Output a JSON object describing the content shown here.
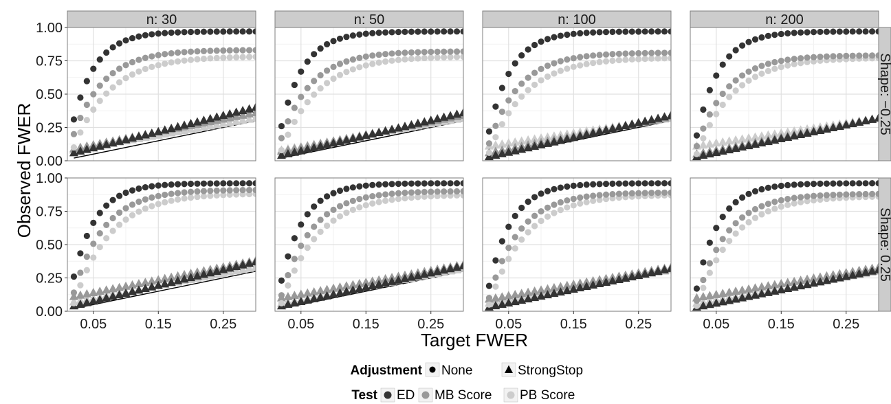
{
  "chart_data": {
    "type": "scatter",
    "xlabel": "Target FWER",
    "ylabel": "Observed FWER",
    "xlim": [
      0.01,
      0.3
    ],
    "ylim": [
      0,
      1
    ],
    "x_ticks": [
      "0.05",
      "0.15",
      "0.25"
    ],
    "x_tick_values": [
      0.05,
      0.15,
      0.25
    ],
    "y_ticks": [
      "0.00",
      "0.25",
      "0.50",
      "0.75",
      "1.00"
    ],
    "y_tick_values": [
      0,
      0.25,
      0.5,
      0.75,
      1
    ],
    "grid": true,
    "reference_line": "y = x",
    "col_facets": [
      "n: 30",
      "n: 50",
      "n: 100",
      "n: 200"
    ],
    "row_facets": [
      "Shape: −0.25",
      "Shape: 0.25"
    ],
    "x_points": [
      0.02,
      0.03,
      0.04,
      0.05,
      0.06,
      0.07,
      0.08,
      0.09,
      0.1,
      0.11,
      0.12,
      0.13,
      0.14,
      0.15,
      0.16,
      0.17,
      0.18,
      0.19,
      0.2,
      0.21,
      0.22,
      0.23,
      0.24,
      0.25,
      0.26,
      0.27,
      0.28,
      0.29,
      0.3
    ],
    "tests": [
      {
        "name": "ED",
        "color": "#333333"
      },
      {
        "name": "MB Score",
        "color": "#999999"
      },
      {
        "name": "PB Score",
        "color": "#cccccc"
      }
    ],
    "adjustments": [
      {
        "name": "None",
        "shape": "circle"
      },
      {
        "name": "StrongStop",
        "shape": "triangle"
      }
    ],
    "panels": [
      {
        "row": 0,
        "col": 0,
        "none_start": [
          0.31,
          0.2,
          0.1
        ],
        "none_end": [
          0.97,
          0.83,
          0.78
        ],
        "none_k": [
          8,
          6,
          5
        ],
        "strong_start": [
          0.06,
          0.09,
          0.08
        ],
        "strong_end": [
          0.4,
          0.36,
          0.32
        ]
      },
      {
        "row": 0,
        "col": 1,
        "none_start": [
          0.26,
          0.17,
          0.08
        ],
        "none_end": [
          0.97,
          0.82,
          0.78
        ],
        "none_k": [
          8,
          6,
          5
        ],
        "strong_start": [
          0.04,
          0.07,
          0.08
        ],
        "strong_end": [
          0.36,
          0.34,
          0.32
        ]
      },
      {
        "row": 0,
        "col": 2,
        "none_start": [
          0.22,
          0.13,
          0.06
        ],
        "none_end": [
          0.97,
          0.81,
          0.77
        ],
        "none_k": [
          8,
          6,
          5
        ],
        "strong_start": [
          0.03,
          0.06,
          0.11
        ],
        "strong_end": [
          0.34,
          0.33,
          0.32
        ]
      },
      {
        "row": 0,
        "col": 3,
        "none_start": [
          0.19,
          0.11,
          0.05
        ],
        "none_end": [
          0.97,
          0.79,
          0.77
        ],
        "none_k": [
          8,
          6,
          5
        ],
        "strong_start": [
          0.03,
          0.05,
          0.11
        ],
        "strong_end": [
          0.32,
          0.32,
          0.32
        ]
      },
      {
        "row": 1,
        "col": 0,
        "none_start": [
          0.26,
          0.14,
          0.06
        ],
        "none_end": [
          0.96,
          0.91,
          0.88
        ],
        "none_k": [
          8,
          6,
          5
        ],
        "strong_start": [
          0.04,
          0.11,
          0.07
        ],
        "strong_end": [
          0.37,
          0.38,
          0.33
        ]
      },
      {
        "row": 1,
        "col": 1,
        "none_start": [
          0.23,
          0.12,
          0.06
        ],
        "none_end": [
          0.96,
          0.9,
          0.87
        ],
        "none_k": [
          8,
          6,
          5
        ],
        "strong_start": [
          0.04,
          0.1,
          0.06
        ],
        "strong_end": [
          0.34,
          0.35,
          0.32
        ]
      },
      {
        "row": 1,
        "col": 2,
        "none_start": [
          0.19,
          0.1,
          0.05
        ],
        "none_end": [
          0.96,
          0.89,
          0.87
        ],
        "none_k": [
          8,
          6,
          5
        ],
        "strong_start": [
          0.03,
          0.09,
          0.06
        ],
        "strong_end": [
          0.32,
          0.33,
          0.31
        ]
      },
      {
        "row": 1,
        "col": 3,
        "none_start": [
          0.17,
          0.08,
          0.04
        ],
        "none_end": [
          0.96,
          0.88,
          0.86
        ],
        "none_k": [
          8,
          6,
          5
        ],
        "strong_start": [
          0.03,
          0.1,
          0.06
        ],
        "strong_end": [
          0.31,
          0.33,
          0.3
        ]
      }
    ],
    "legend_position": "bottom",
    "legend": {
      "adjustment_title": "Adjustment",
      "adjustment_items": [
        "None",
        "StrongStop"
      ],
      "test_title": "Test",
      "test_items": [
        "ED",
        "MB Score",
        "PB Score"
      ]
    }
  }
}
